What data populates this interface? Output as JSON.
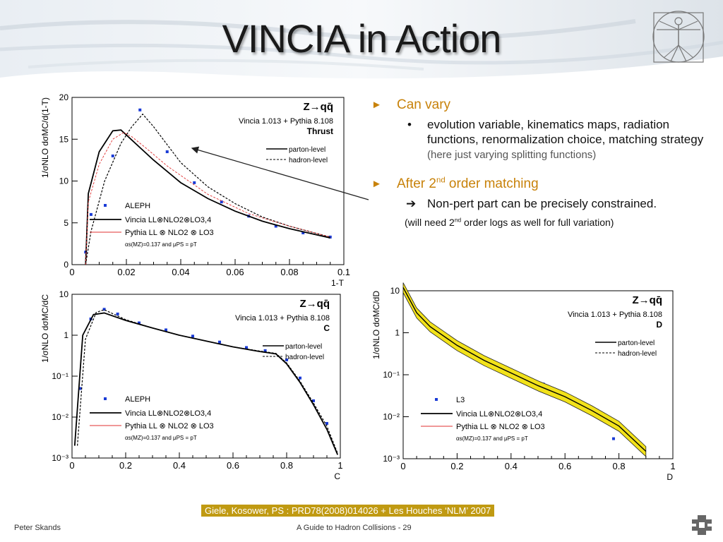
{
  "slide": {
    "title": "VINCIA in Action",
    "citation": "Giele, Kosower, PS : PRD78(2008)014026  + Les Houches ‘NLM’ 2007",
    "footer_left": "Peter Skands",
    "footer_center": "A Guide to Hadron Collisions - 29",
    "icons": [
      "vitruvian-man-logo",
      "fermilab-logo"
    ]
  },
  "bullets": {
    "b1": "Can vary",
    "b1_sub": "evolution variable, kinematics maps, radiation functions, renormalization choice, matching strategy",
    "b1_sub_note": "(here just varying splitting functions)",
    "b2_pre": "After 2",
    "b2_sup": "nd",
    "b2_post": " order matching",
    "b2_sub": "Non-pert part can be precisely constrained.",
    "note_pre": "(will need 2",
    "note_sup": "nd",
    "note_post": " order logs as well for full variation)"
  },
  "colors": {
    "accent": "#c8820a",
    "citation_bg": "#c09a12",
    "data_blue": "#1a3bd6",
    "pythia_red": "#e03030",
    "band_yellow": "#f2e21a"
  },
  "chart_data": [
    {
      "type": "line",
      "title": "Z→qq̄",
      "subtitle": "Vincia 1.013 + Pythia 8.108",
      "observable": "Thrust",
      "xlabel": "1-T",
      "ylabel": "1/σNLO dσMC/d(1-T)",
      "xlim": [
        0,
        0.1
      ],
      "ylim": [
        0,
        20
      ],
      "xticks": [
        "0",
        "0.02",
        "0.04",
        "0.06",
        "0.08",
        "0.1"
      ],
      "yticks": [
        "0",
        "5",
        "10",
        "15",
        "20"
      ],
      "log_y": false,
      "legend": [
        "parton-level",
        "hadron-level"
      ],
      "legend2": [
        "ALEPH",
        "Vincia LL⊗NLO2⊗LO3,4",
        "Pythia LL ⊗ NLO2 ⊗ LO3",
        "αs(MZ)=0.137 and μPS = pT"
      ],
      "series": [
        {
          "name": "ALEPH",
          "x": [
            0.005,
            0.007,
            0.015,
            0.025,
            0.035,
            0.045,
            0.055,
            0.065,
            0.075,
            0.085,
            0.095
          ],
          "y": [
            1.5,
            6.0,
            13.0,
            18.5,
            13.5,
            9.8,
            7.5,
            5.8,
            4.6,
            3.8,
            3.3
          ]
        },
        {
          "name": "parton-level",
          "x": [
            0.005,
            0.006,
            0.01,
            0.015,
            0.018,
            0.02,
            0.025,
            0.03,
            0.04,
            0.05,
            0.06,
            0.07,
            0.08,
            0.095
          ],
          "y": [
            0,
            8.5,
            13.5,
            16.0,
            16.1,
            15.5,
            14.0,
            12.5,
            9.8,
            7.9,
            6.4,
            5.2,
            4.3,
            3.2
          ]
        },
        {
          "name": "hadron-level",
          "x": [
            0.005,
            0.007,
            0.012,
            0.018,
            0.022,
            0.026,
            0.03,
            0.04,
            0.05,
            0.06,
            0.07,
            0.08,
            0.095
          ],
          "y": [
            0,
            4.0,
            10.0,
            14.5,
            16.5,
            18.0,
            16.5,
            12.2,
            9.3,
            7.3,
            5.7,
            4.6,
            3.3
          ]
        },
        {
          "name": "Pythia LL ⊗ NLO2 ⊗ LO3",
          "x": [
            0.005,
            0.006,
            0.01,
            0.015,
            0.019,
            0.022,
            0.027,
            0.035,
            0.05,
            0.065,
            0.08,
            0.095
          ],
          "y": [
            0,
            7.5,
            12.0,
            15.0,
            15.8,
            15.3,
            14.0,
            11.8,
            8.4,
            6.1,
            4.6,
            3.3
          ]
        }
      ]
    },
    {
      "type": "line",
      "title": "Z→qq̄",
      "subtitle": "Vincia 1.013 + Pythia 8.108",
      "observable": "C",
      "xlabel": "C",
      "ylabel": "1/σNLO dσMC/dC",
      "xlim": [
        0,
        1
      ],
      "ylim": [
        0.001,
        10
      ],
      "xticks": [
        "0",
        "0.2",
        "0.4",
        "0.6",
        "0.8",
        "1"
      ],
      "yticks": [
        "10⁻³",
        "10⁻²",
        "10⁻¹",
        "1",
        "10"
      ],
      "log_y": true,
      "legend": [
        "parton-level",
        "hadron-level"
      ],
      "legend2": [
        "ALEPH",
        "Vincia LL⊗NLO2⊗LO3,4",
        "Pythia LL ⊗ NLO2 ⊗ LO3",
        "αs(MZ)=0.137 and μPS = pT"
      ],
      "series": [
        {
          "name": "ALEPH",
          "x": [
            0.03,
            0.07,
            0.12,
            0.17,
            0.25,
            0.35,
            0.45,
            0.55,
            0.65,
            0.72,
            0.8,
            0.85,
            0.9,
            0.95
          ],
          "y": [
            0.05,
            2.5,
            4.3,
            3.3,
            2.0,
            1.35,
            0.95,
            0.68,
            0.5,
            0.42,
            0.25,
            0.09,
            0.025,
            0.007
          ]
        },
        {
          "name": "parton-level",
          "x": [
            0.01,
            0.04,
            0.08,
            0.12,
            0.2,
            0.3,
            0.4,
            0.5,
            0.6,
            0.7,
            0.76,
            0.8,
            0.85,
            0.9,
            0.95,
            0.99
          ],
          "y": [
            0.002,
            1.0,
            3.2,
            3.5,
            2.3,
            1.5,
            1.0,
            0.72,
            0.52,
            0.4,
            0.35,
            0.2,
            0.07,
            0.02,
            0.005,
            0.0012
          ]
        },
        {
          "name": "hadron-level",
          "x": [
            0.02,
            0.05,
            0.09,
            0.12,
            0.2,
            0.3,
            0.4,
            0.5,
            0.6,
            0.7,
            0.76,
            0.8,
            0.85,
            0.9,
            0.95,
            0.99
          ],
          "y": [
            0.002,
            0.8,
            3.6,
            4.2,
            2.4,
            1.5,
            1.0,
            0.72,
            0.52,
            0.41,
            0.36,
            0.21,
            0.075,
            0.022,
            0.006,
            0.0013
          ]
        }
      ]
    },
    {
      "type": "line",
      "title": "Z→qq̄",
      "subtitle": "Vincia 1.013 + Pythia 8.108",
      "observable": "D",
      "xlabel": "D",
      "ylabel": "1/σNLO dσMC/dD",
      "xlim": [
        0,
        1
      ],
      "ylim": [
        0.001,
        10
      ],
      "xticks": [
        "0",
        "0.2",
        "0.4",
        "0.6",
        "0.8",
        "1"
      ],
      "yticks": [
        "10⁻³",
        "10⁻²",
        "10⁻¹",
        "1",
        "10"
      ],
      "log_y": true,
      "legend": [
        "parton-level",
        "hadron-level"
      ],
      "legend2": [
        "L3",
        "Vincia LL⊗NLO2⊗LO3,4",
        "Pythia LL ⊗ NLO2 ⊗ LO3",
        "αs(MZ)=0.137 and μPS = pT"
      ],
      "series": [
        {
          "name": "L3",
          "x": [
            0.03,
            0.08,
            0.15,
            0.22,
            0.3,
            0.38,
            0.45,
            0.52,
            0.6,
            0.66,
            0.72,
            0.78
          ],
          "y": [
            5,
            1.9,
            0.9,
            0.45,
            0.24,
            0.14,
            0.09,
            0.06,
            0.035,
            0.022,
            0.014,
            0.003
          ]
        },
        {
          "name": "Vincia",
          "x": [
            0.0,
            0.05,
            0.1,
            0.2,
            0.3,
            0.4,
            0.5,
            0.6,
            0.7,
            0.8,
            0.9
          ],
          "y": [
            12,
            3.0,
            1.4,
            0.5,
            0.22,
            0.11,
            0.055,
            0.03,
            0.014,
            0.006,
            0.0015
          ]
        }
      ]
    }
  ]
}
